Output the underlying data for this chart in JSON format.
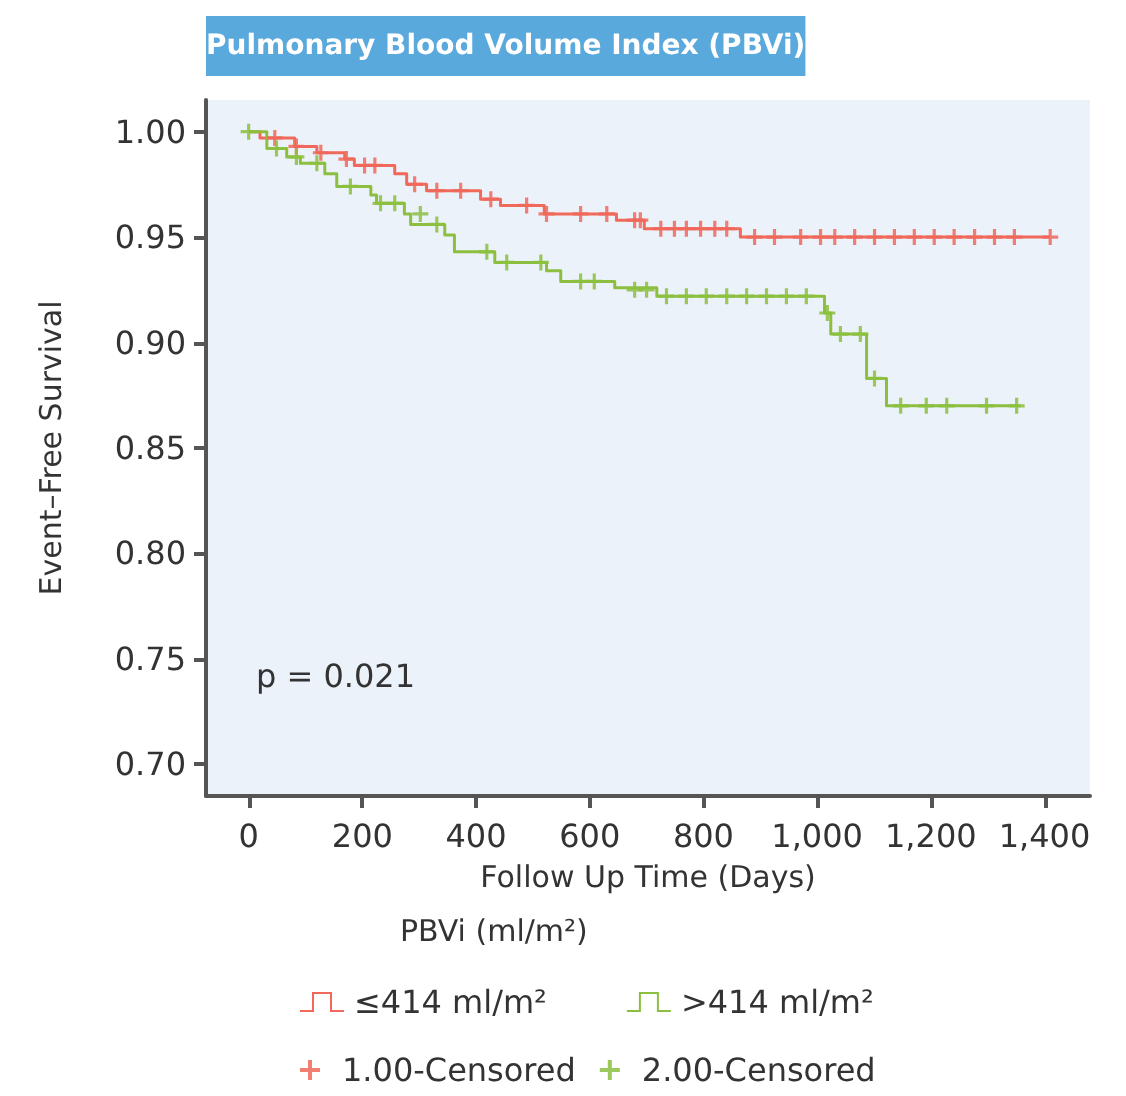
{
  "chart_data": {
    "type": "step",
    "title": "Pulmonary Blood Volume Index (PBVi)",
    "xlabel": "Follow Up Time (Days)",
    "ylabel": "Event–Free Survival",
    "legend_title": "PBVi (ml/m²)",
    "annotations": [
      "p = 0.021"
    ],
    "xlim": [
      -75,
      1480
    ],
    "ylim": [
      0.685,
      1.015
    ],
    "xticks": [
      0,
      200,
      400,
      600,
      800,
      {
        "value": 1000,
        "label": "1,000"
      },
      {
        "value": 1200,
        "label": "1,200"
      },
      {
        "value": 1400,
        "label": "1,400"
      }
    ],
    "yticks": [
      {
        "value": 0.7,
        "label": "0.70"
      },
      {
        "value": 0.75,
        "label": "0.75"
      },
      {
        "value": 0.8,
        "label": "0.80"
      },
      {
        "value": 0.85,
        "label": "0.85"
      },
      {
        "value": 0.9,
        "label": "0.90"
      },
      {
        "value": 0.95,
        "label": "0.95"
      },
      {
        "value": 1,
        "label": "1.00"
      }
    ],
    "legend": "bottom",
    "marker": "none",
    "series": [
      {
        "name": "≤414 ml/m²",
        "type": "step",
        "color": "#f0695a",
        "x": [
          0,
          20,
          81,
          120,
          169,
          186,
          257,
          278,
          313,
          408,
          443,
          520,
          647,
          696,
          865,
          1410
        ],
        "values": [
          1.0,
          0.997,
          0.993,
          0.99,
          0.987,
          0.984,
          0.98,
          0.975,
          0.972,
          0.968,
          0.965,
          0.961,
          0.958,
          0.954,
          0.95,
          0.95
        ]
      },
      {
        "name": ">414 ml/m²",
        "type": "step",
        "color": "#8cbf3f",
        "x": [
          0,
          32,
          67,
          91,
          134,
          155,
          215,
          225,
          274,
          285,
          345,
          362,
          433,
          524,
          549,
          644,
          718,
          1013,
          1024,
          1087,
          1122,
          1358
        ],
        "values": [
          1.0,
          0.992,
          0.988,
          0.985,
          0.98,
          0.974,
          0.97,
          0.966,
          0.961,
          0.956,
          0.951,
          0.943,
          0.938,
          0.934,
          0.929,
          0.926,
          0.922,
          0.914,
          0.904,
          0.883,
          0.87,
          0.87
        ]
      },
      {
        "name": "1.00-Censored",
        "type": "scatter",
        "marker": "cross",
        "color": "#f0695a",
        "x": [
          46,
          84,
          127,
          172,
          204,
          222,
          292,
          331,
          373,
          426,
          489,
          524,
          584,
          630,
          679,
          689,
          725,
          749,
          770,
          795,
          820,
          841,
          890,
          925,
          971,
          1006,
          1031,
          1066,
          1101,
          1136,
          1171,
          1206,
          1241,
          1277,
          1312,
          1347,
          1410
        ],
        "values": [
          0.997,
          0.993,
          0.99,
          0.987,
          0.984,
          0.984,
          0.975,
          0.972,
          0.972,
          0.968,
          0.965,
          0.961,
          0.961,
          0.961,
          0.958,
          0.958,
          0.954,
          0.954,
          0.954,
          0.954,
          0.954,
          0.954,
          0.95,
          0.95,
          0.95,
          0.95,
          0.95,
          0.95,
          0.95,
          0.95,
          0.95,
          0.95,
          0.95,
          0.95,
          0.95,
          0.95,
          0.95
        ]
      },
      {
        "name": "2.00-Censored",
        "type": "scatter",
        "marker": "cross",
        "color": "#8cbf3f",
        "x": [
          0,
          49,
          84,
          120,
          179,
          232,
          257,
          302,
          331,
          419,
          454,
          514,
          584,
          608,
          679,
          700,
          735,
          770,
          805,
          841,
          876,
          911,
          946,
          981,
          1018,
          1041,
          1076,
          1101,
          1147,
          1192,
          1228,
          1298,
          1351
        ],
        "values": [
          1.0,
          0.992,
          0.988,
          0.985,
          0.974,
          0.966,
          0.966,
          0.961,
          0.956,
          0.943,
          0.938,
          0.938,
          0.929,
          0.929,
          0.925,
          0.925,
          0.922,
          0.922,
          0.922,
          0.922,
          0.922,
          0.922,
          0.922,
          0.922,
          0.914,
          0.904,
          0.904,
          0.883,
          0.87,
          0.87,
          0.87,
          0.87,
          0.87
        ]
      }
    ]
  }
}
